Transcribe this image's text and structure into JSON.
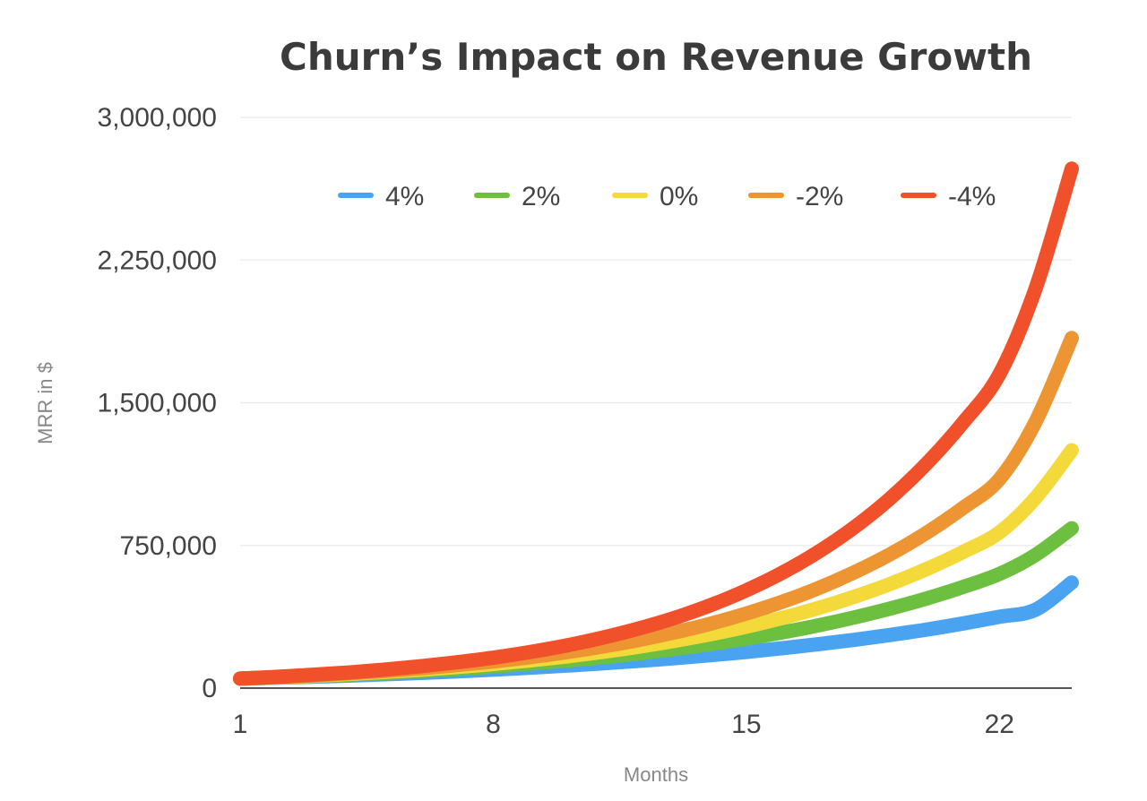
{
  "chart_data": {
    "type": "line",
    "title": "Churn’s Impact on Revenue Growth",
    "xlabel": "Months",
    "ylabel": "MRR in $",
    "xlim": [
      1,
      24
    ],
    "ylim": [
      0,
      3000000
    ],
    "x_ticks": [
      1,
      8,
      15,
      22
    ],
    "x_tick_labels": [
      "1",
      "8",
      "15",
      "22"
    ],
    "y_ticks": [
      0,
      750000,
      1500000,
      2250000,
      3000000
    ],
    "y_tick_labels": [
      "0",
      "750,000",
      "1,500,000",
      "2,250,000",
      "3,000,000"
    ],
    "grid": true,
    "legend_position": "top",
    "x": [
      1,
      2,
      3,
      4,
      5,
      6,
      7,
      8,
      9,
      10,
      11,
      12,
      13,
      14,
      15,
      16,
      17,
      18,
      19,
      20,
      21,
      22,
      23,
      24
    ],
    "series": [
      {
        "name": "4%",
        "color": "#4aa3f0",
        "values": [
          50000,
          55000,
          60000,
          66000,
          73000,
          80000,
          88000,
          97000,
          107000,
          118000,
          130000,
          143000,
          157000,
          173000,
          190000,
          210000,
          231000,
          254000,
          280000,
          308000,
          340000,
          375000,
          412000,
          555000
        ]
      },
      {
        "name": "2%",
        "color": "#6cbf3f",
        "values": [
          50000,
          56000,
          63000,
          71000,
          80000,
          90000,
          101000,
          114000,
          128000,
          144000,
          162000,
          182000,
          205000,
          231000,
          260000,
          293000,
          330000,
          372000,
          419000,
          472000,
          532000,
          600000,
          700000,
          840000
        ]
      },
      {
        "name": "0%",
        "color": "#f4d93a",
        "values": [
          50000,
          57000,
          65000,
          74000,
          85000,
          97000,
          111000,
          127000,
          145000,
          166000,
          190000,
          217000,
          248000,
          283000,
          323000,
          369000,
          421000,
          481000,
          549000,
          627000,
          716000,
          818000,
          1000000,
          1250000
        ]
      },
      {
        "name": "-2%",
        "color": "#ec9532",
        "values": [
          50000,
          58000,
          67000,
          78000,
          90000,
          104000,
          121000,
          140000,
          162000,
          188000,
          218000,
          252000,
          292000,
          338000,
          392000,
          454000,
          526000,
          610000,
          706000,
          818000,
          948000,
          1098000,
          1400000,
          1840000
        ]
      },
      {
        "name": "-4%",
        "color": "#f0502a",
        "values": [
          50000,
          59000,
          70000,
          82000,
          97000,
          115000,
          136000,
          160000,
          189000,
          223000,
          264000,
          312000,
          368000,
          435000,
          514000,
          607000,
          717000,
          847000,
          1001000,
          1183000,
          1397000,
          1650000,
          2100000,
          2730000
        ]
      }
    ]
  }
}
